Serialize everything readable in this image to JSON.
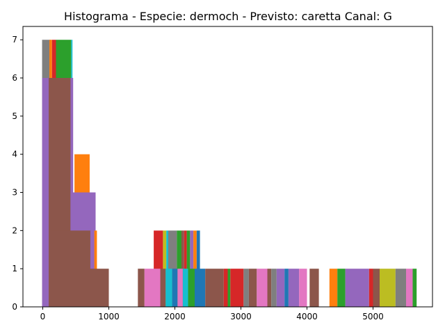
{
  "chart_data": {
    "type": "bar",
    "title": "Histograma - Especie: dermoch - Previsto: caretta Canal: G",
    "xlabel": "",
    "ylabel": "",
    "xlim": [
      -300,
      5900
    ],
    "ylim": [
      0,
      7.35
    ],
    "x_ticks": [
      0,
      1000,
      2000,
      3000,
      4000,
      5000
    ],
    "y_ticks": [
      0,
      1,
      2,
      3,
      4,
      5,
      6,
      7
    ],
    "grid": false,
    "palette": [
      "#1f77b4",
      "#ff7f0e",
      "#2ca02c",
      "#d62728",
      "#9467bd",
      "#8c564b",
      "#e377c2",
      "#7f7f7f",
      "#bcbd22",
      "#17becf"
    ],
    "bars": [
      {
        "x0": -10,
        "x1": 120,
        "y": 7,
        "color": "#7f7f7f"
      },
      {
        "x0": 100,
        "x1": 140,
        "y": 7,
        "color": "#ff7f0e"
      },
      {
        "x0": 140,
        "x1": 200,
        "y": 7,
        "color": "#d62728"
      },
      {
        "x0": 200,
        "x1": 430,
        "y": 7,
        "color": "#2ca02c"
      },
      {
        "x0": 430,
        "x1": 450,
        "y": 7,
        "color": "#17becf"
      },
      {
        "x0": -10,
        "x1": 460,
        "y": 6,
        "color": "#9467bd"
      },
      {
        "x0": 90,
        "x1": 420,
        "y": 6,
        "color": "#8c564b"
      },
      {
        "x0": 480,
        "x1": 710,
        "y": 4,
        "color": "#ff7f0e"
      },
      {
        "x0": 420,
        "x1": 800,
        "y": 3,
        "color": "#9467bd"
      },
      {
        "x0": 780,
        "x1": 820,
        "y": 2,
        "color": "#ff7f0e"
      },
      {
        "x0": 120,
        "x1": 720,
        "y": 2,
        "color": "#8c564b"
      },
      {
        "x0": 120,
        "x1": 1000,
        "y": 1,
        "color": "#8c564b"
      },
      {
        "x0": 1680,
        "x1": 1820,
        "y": 2,
        "color": "#d62728"
      },
      {
        "x0": 1820,
        "x1": 1870,
        "y": 2,
        "color": "#bcbd22"
      },
      {
        "x0": 1870,
        "x1": 1900,
        "y": 2,
        "color": "#17becf"
      },
      {
        "x0": 1900,
        "x1": 2030,
        "y": 2,
        "color": "#7f7f7f"
      },
      {
        "x0": 2030,
        "x1": 2100,
        "y": 2,
        "color": "#2ca02c"
      },
      {
        "x0": 2100,
        "x1": 2140,
        "y": 2,
        "color": "#8c564b"
      },
      {
        "x0": 2140,
        "x1": 2180,
        "y": 2,
        "color": "#d62728"
      },
      {
        "x0": 2180,
        "x1": 2230,
        "y": 2,
        "color": "#2ca02c"
      },
      {
        "x0": 2230,
        "x1": 2280,
        "y": 2,
        "color": "#9467bd"
      },
      {
        "x0": 2280,
        "x1": 2330,
        "y": 2,
        "color": "#ff7f0e"
      },
      {
        "x0": 2330,
        "x1": 2380,
        "y": 2,
        "color": "#1f77b4"
      },
      {
        "x0": 1440,
        "x1": 1540,
        "y": 1,
        "color": "#8c564b"
      },
      {
        "x0": 1540,
        "x1": 1780,
        "y": 1,
        "color": "#e377c2"
      },
      {
        "x0": 1780,
        "x1": 1860,
        "y": 1,
        "color": "#8c564b"
      },
      {
        "x0": 1860,
        "x1": 1960,
        "y": 1,
        "color": "#17becf"
      },
      {
        "x0": 1960,
        "x1": 2040,
        "y": 1,
        "color": "#1f77b4"
      },
      {
        "x0": 2040,
        "x1": 2120,
        "y": 1,
        "color": "#e377c2"
      },
      {
        "x0": 2120,
        "x1": 2200,
        "y": 1,
        "color": "#17becf"
      },
      {
        "x0": 2200,
        "x1": 2300,
        "y": 1,
        "color": "#2ca02c"
      },
      {
        "x0": 2300,
        "x1": 2460,
        "y": 1,
        "color": "#1f77b4"
      },
      {
        "x0": 2460,
        "x1": 2740,
        "y": 1,
        "color": "#8c564b"
      },
      {
        "x0": 2740,
        "x1": 2800,
        "y": 1,
        "color": "#d62728"
      },
      {
        "x0": 2800,
        "x1": 2840,
        "y": 1,
        "color": "#2ca02c"
      },
      {
        "x0": 2840,
        "x1": 3040,
        "y": 1,
        "color": "#d62728"
      },
      {
        "x0": 3040,
        "x1": 3120,
        "y": 1,
        "color": "#7f7f7f"
      },
      {
        "x0": 3120,
        "x1": 3240,
        "y": 1,
        "color": "#8c564b"
      },
      {
        "x0": 3240,
        "x1": 3400,
        "y": 1,
        "color": "#e377c2"
      },
      {
        "x0": 3400,
        "x1": 3460,
        "y": 1,
        "color": "#8c564b"
      },
      {
        "x0": 3460,
        "x1": 3540,
        "y": 1,
        "color": "#7f7f7f"
      },
      {
        "x0": 3540,
        "x1": 3660,
        "y": 1,
        "color": "#9467bd"
      },
      {
        "x0": 3660,
        "x1": 3720,
        "y": 1,
        "color": "#1f77b4"
      },
      {
        "x0": 3720,
        "x1": 3880,
        "y": 1,
        "color": "#9467bd"
      },
      {
        "x0": 3880,
        "x1": 4000,
        "y": 1,
        "color": "#e377c2"
      },
      {
        "x0": 4040,
        "x1": 4180,
        "y": 1,
        "color": "#8c564b"
      },
      {
        "x0": 4340,
        "x1": 4460,
        "y": 1,
        "color": "#ff7f0e"
      },
      {
        "x0": 4460,
        "x1": 4580,
        "y": 1,
        "color": "#2ca02c"
      },
      {
        "x0": 4580,
        "x1": 4940,
        "y": 1,
        "color": "#9467bd"
      },
      {
        "x0": 4940,
        "x1": 5000,
        "y": 1,
        "color": "#d62728"
      },
      {
        "x0": 5000,
        "x1": 5100,
        "y": 1,
        "color": "#8c564b"
      },
      {
        "x0": 5100,
        "x1": 5340,
        "y": 1,
        "color": "#bcbd22"
      },
      {
        "x0": 5340,
        "x1": 5500,
        "y": 1,
        "color": "#7f7f7f"
      },
      {
        "x0": 5500,
        "x1": 5600,
        "y": 1,
        "color": "#e377c2"
      },
      {
        "x0": 5600,
        "x1": 5660,
        "y": 1,
        "color": "#2ca02c"
      }
    ]
  }
}
